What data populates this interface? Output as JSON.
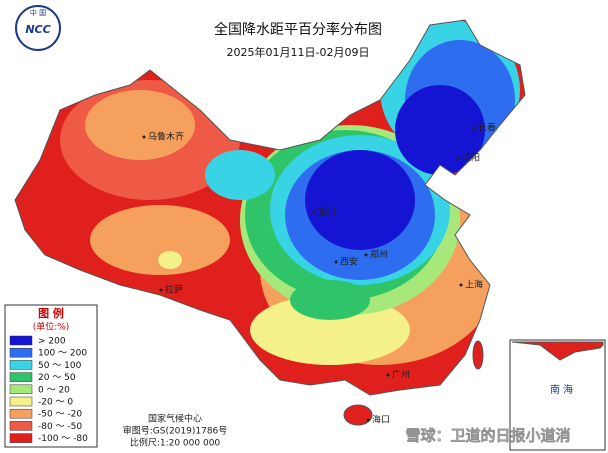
{
  "header": {
    "title": "全国降水距平百分率分布图",
    "subtitle": "2025年01月11日-02月09日",
    "logo_top": "中 国",
    "logo_text": "NCC"
  },
  "legend": {
    "title": "图 例",
    "unit": "(单位:%)",
    "entries": [
      {
        "label": "> 200",
        "color": "#1414d2"
      },
      {
        "label": "100 ～ 200",
        "color": "#2e6cf0"
      },
      {
        "label": "50 ～ 100",
        "color": "#39d3e6"
      },
      {
        "label": "20 ～ 50",
        "color": "#2fc46a"
      },
      {
        "label": "0 ～ 20",
        "color": "#a6e87a"
      },
      {
        "label": "-20 ～ 0",
        "color": "#f4f08a"
      },
      {
        "label": "-50 ～ -20",
        "color": "#f6a05e"
      },
      {
        "label": "-80 ～ -50",
        "color": "#ee5a45"
      },
      {
        "label": "-100 ～ -80",
        "color": "#e0201c"
      }
    ]
  },
  "cities": [
    {
      "name": "乌鲁木齐"
    },
    {
      "name": "银川"
    },
    {
      "name": "西安"
    },
    {
      "name": "郑州"
    },
    {
      "name": "长春"
    },
    {
      "name": "沈阳"
    },
    {
      "name": "拉萨"
    },
    {
      "name": "上海"
    },
    {
      "name": "广州"
    },
    {
      "name": "海口"
    }
  ],
  "footer": {
    "agency": "国家气候中心",
    "approval": "审图号:GS(2019)1786号",
    "scale": "比例尺:1:20 000 000"
  },
  "inset": {
    "label": "南 海"
  },
  "watermark": "雪球：卫道的日报小道消"
}
